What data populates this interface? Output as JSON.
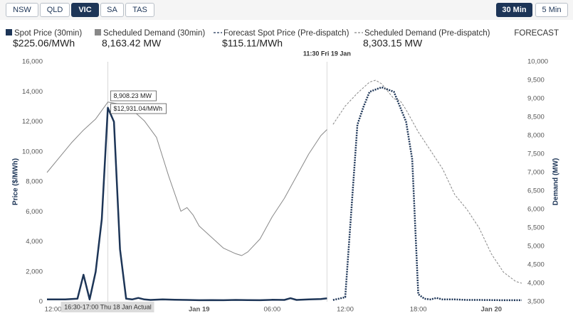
{
  "controls": {
    "regions": [
      "NSW",
      "QLD",
      "VIC",
      "SA",
      "TAS"
    ],
    "selected_region": "VIC",
    "intervals": [
      "30 Min",
      "5 Min"
    ],
    "selected_interval": "30 Min"
  },
  "chart_data": {
    "type": "line",
    "forecast_label": "FORECAST",
    "y_label": "Price ($/MWh)",
    "y2_label": "Demand (MW)",
    "xlim": [
      11.5,
      50.5
    ],
    "xticks": [
      {
        "value": 12,
        "label": "12:00"
      },
      {
        "value": 24,
        "label": "Jan 19"
      },
      {
        "value": 30,
        "label": "06:00"
      },
      {
        "value": 36,
        "label": "12:00"
      },
      {
        "value": 42,
        "label": "18:00"
      },
      {
        "value": 48,
        "label": "Jan 20"
      }
    ],
    "ylim": [
      0,
      16000
    ],
    "yticks": [
      0,
      {
        "value": 2000,
        "label": "2,000"
      },
      {
        "value": 4000,
        "label": "4,000"
      },
      {
        "value": 6000,
        "label": "6,000"
      },
      {
        "value": 8000,
        "label": "8,000"
      },
      {
        "value": 10000,
        "label": "10,000"
      },
      {
        "value": 12000,
        "label": "12,000"
      },
      {
        "value": 14000,
        "label": "14,000"
      },
      {
        "value": 16000,
        "label": "16,000"
      }
    ],
    "y2lim": [
      3500,
      10000
    ],
    "y2ticks": [
      {
        "value": 3500,
        "label": "3,500"
      },
      {
        "value": 4000,
        "label": "4,000"
      },
      {
        "value": 4500,
        "label": "4,500"
      },
      {
        "value": 5000,
        "label": "5,000"
      },
      {
        "value": 5500,
        "label": "5,500"
      },
      {
        "value": 6000,
        "label": "6,000"
      },
      {
        "value": 6500,
        "label": "6,500"
      },
      {
        "value": 7000,
        "label": "7,000"
      },
      {
        "value": 7500,
        "label": "7,500"
      },
      {
        "value": 8000,
        "label": "8,000"
      },
      {
        "value": 8500,
        "label": "8,500"
      },
      {
        "value": 9000,
        "label": "9,000"
      },
      {
        "value": 9500,
        "label": "9,500"
      },
      {
        "value": 10000,
        "label": "10,000"
      }
    ],
    "grid": false,
    "markers": [
      {
        "x": 16.5,
        "label": "16:30-17:00 Thu 18 Jan Actual"
      },
      {
        "x": 34.5,
        "label": "11:30 Fri 19 Jan"
      }
    ],
    "annotations": [
      "8,908.23 MW",
      "$12,931.04/MWh"
    ],
    "series": [
      {
        "name": "Spot Price (30min)",
        "readout": "$225.06/MWh",
        "color": "#1d3557",
        "style": "solid",
        "width": 2.5,
        "x": [
          11.5,
          12,
          13,
          14,
          14.5,
          15,
          15.5,
          16,
          16.5,
          17,
          17.5,
          18,
          18.5,
          19,
          19.5,
          20,
          21,
          22,
          23,
          24,
          25,
          26,
          27,
          28,
          29,
          30,
          31,
          31.5,
          32,
          33,
          34,
          34.5
        ],
        "values": [
          150,
          150,
          150,
          200,
          1800,
          150,
          2000,
          5500,
          12931.04,
          12000,
          3500,
          200,
          150,
          250,
          150,
          120,
          150,
          130,
          120,
          100,
          110,
          100,
          120,
          110,
          100,
          130,
          120,
          230,
          120,
          150,
          180,
          225.06
        ]
      },
      {
        "name": "Scheduled Demand (30min)",
        "readout": "8,163.42 MW",
        "color": "#888888",
        "style": "solid",
        "width": 1,
        "axis": "y2",
        "x": [
          11.5,
          12.5,
          13.5,
          14.5,
          15.5,
          16.5,
          17.5,
          18.5,
          19.5,
          20.5,
          21.5,
          22.5,
          23,
          23.5,
          24,
          25,
          26,
          27,
          27.5,
          28,
          29,
          30,
          31,
          32,
          33,
          34,
          34.5
        ],
        "values": [
          7000,
          7400,
          7800,
          8150,
          8450,
          8908.23,
          8850,
          8700,
          8400,
          7950,
          6900,
          5950,
          6050,
          5850,
          5550,
          5250,
          4950,
          4800,
          4750,
          4850,
          5200,
          5800,
          6300,
          6900,
          7500,
          8000,
          8163.42
        ]
      },
      {
        "name": "Forecast Spot Price (Pre-dispatch)",
        "readout": "$115.11/MWh",
        "color": "#1d3557",
        "style": "dotted",
        "width": 2.5,
        "x": [
          35,
          36,
          37,
          37.5,
          38,
          39,
          40,
          40.5,
          41,
          41.5,
          42,
          42.5,
          43,
          43.5,
          44,
          45,
          46,
          47,
          48,
          49,
          50,
          50.5
        ],
        "values": [
          115.11,
          300,
          11800,
          13000,
          14000,
          14300,
          14000,
          13000,
          12000,
          9500,
          500,
          200,
          150,
          250,
          150,
          150,
          120,
          120,
          110,
          100,
          100,
          100
        ]
      },
      {
        "name": "Scheduled Demand (Pre-dispatch)",
        "readout": "8,303.15 MW",
        "color": "#888888",
        "style": "dashed",
        "width": 1,
        "axis": "y2",
        "x": [
          35,
          36,
          37,
          38,
          38.5,
          39,
          40,
          40.5,
          41,
          42,
          43,
          44,
          45,
          46,
          47,
          48,
          49,
          50,
          50.5
        ],
        "values": [
          8303.15,
          8800,
          9150,
          9450,
          9500,
          9400,
          9000,
          8950,
          8700,
          8100,
          7600,
          7100,
          6400,
          6000,
          5500,
          4800,
          4300,
          4050,
          4000
        ]
      }
    ]
  }
}
